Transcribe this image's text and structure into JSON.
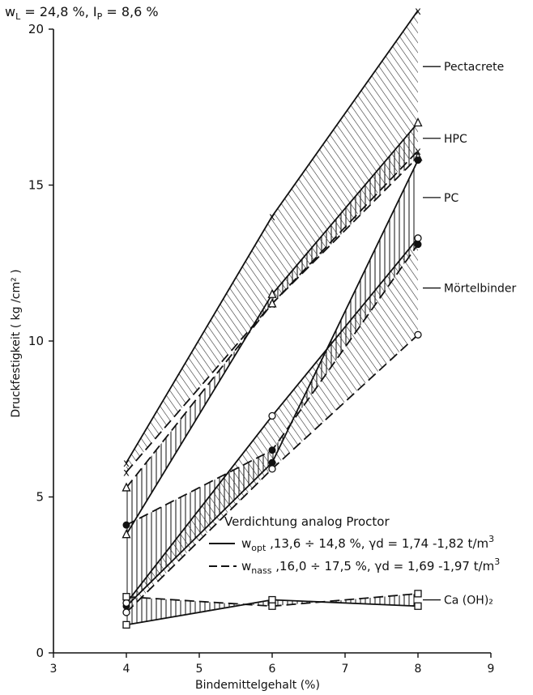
{
  "header": {
    "text": "w_L = 24,8 %,  I_P = 8,6 %",
    "wl": "w",
    "wl_sub": "L",
    "wl_val": " = 24,8 %,  I",
    "ip_sub": "P",
    "ip_val": " = 8,6 %"
  },
  "chart_data": {
    "type": "line",
    "xlabel": "Bindemittelgehalt   (%)",
    "ylabel": "Druckfestigkeit  ( kg /cm² )",
    "xlim": [
      3,
      9
    ],
    "ylim": [
      0,
      20
    ],
    "xticks": [
      "3",
      "4",
      "5",
      "6",
      "7",
      "8",
      "9"
    ],
    "yticks": [
      "0",
      "5",
      "10",
      "15",
      "20"
    ],
    "grid": false,
    "legend_title": "Verdichtung analog Proctor",
    "legend": [
      {
        "line": "solid",
        "name": "w",
        "sub": "opt",
        "rest": " ,13,6 ÷ 14,8 %, ",
        "gamma": "γd = 1,74 -1,82 t/m",
        "sup": "3"
      },
      {
        "line": "dashed",
        "name": "w",
        "sub": "nass",
        "rest": " ,16,0 ÷ 17,5 %, ",
        "gamma": "γd = 1,69 -1,97 t/m",
        "sup": "3"
      }
    ],
    "series": [
      {
        "name": "Pectacrete",
        "marker": "x",
        "hatch": "diagonal",
        "opt": {
          "x": [
            4,
            6,
            8
          ],
          "y": [
            6.1,
            14.0,
            20.6
          ]
        },
        "nass": {
          "x": [
            4,
            6,
            8
          ],
          "y": [
            5.8,
            11.2,
            16.1
          ]
        }
      },
      {
        "name": "HPC",
        "marker": "triangle",
        "hatch": "vertical",
        "opt": {
          "x": [
            4,
            6,
            8
          ],
          "y": [
            3.8,
            11.5,
            17.0
          ]
        },
        "nass": {
          "x": [
            4,
            6,
            8
          ],
          "y": [
            5.3,
            11.2,
            15.9
          ]
        }
      },
      {
        "name": "PC",
        "marker": "filled-circle",
        "hatch": "vertical",
        "opt": {
          "x": [
            4,
            6,
            8
          ],
          "y": [
            1.5,
            6.1,
            15.8
          ]
        },
        "nass": {
          "x": [
            4,
            6,
            8
          ],
          "y": [
            4.1,
            6.5,
            13.1
          ]
        }
      },
      {
        "name": "Mörtelbinder",
        "marker": "open-circle",
        "hatch": "diagonal",
        "opt": {
          "x": [
            4,
            6,
            8
          ],
          "y": [
            1.6,
            7.6,
            13.3
          ]
        },
        "nass": {
          "x": [
            4,
            6,
            8
          ],
          "y": [
            1.3,
            5.9,
            10.2
          ]
        }
      },
      {
        "name": "Ca (OH)₂",
        "marker": "square",
        "hatch": "vertical",
        "opt": {
          "x": [
            4,
            6,
            8
          ],
          "y": [
            0.9,
            1.7,
            1.5
          ]
        },
        "nass": {
          "x": [
            4,
            6,
            8
          ],
          "y": [
            1.8,
            1.5,
            1.9
          ]
        }
      }
    ]
  }
}
